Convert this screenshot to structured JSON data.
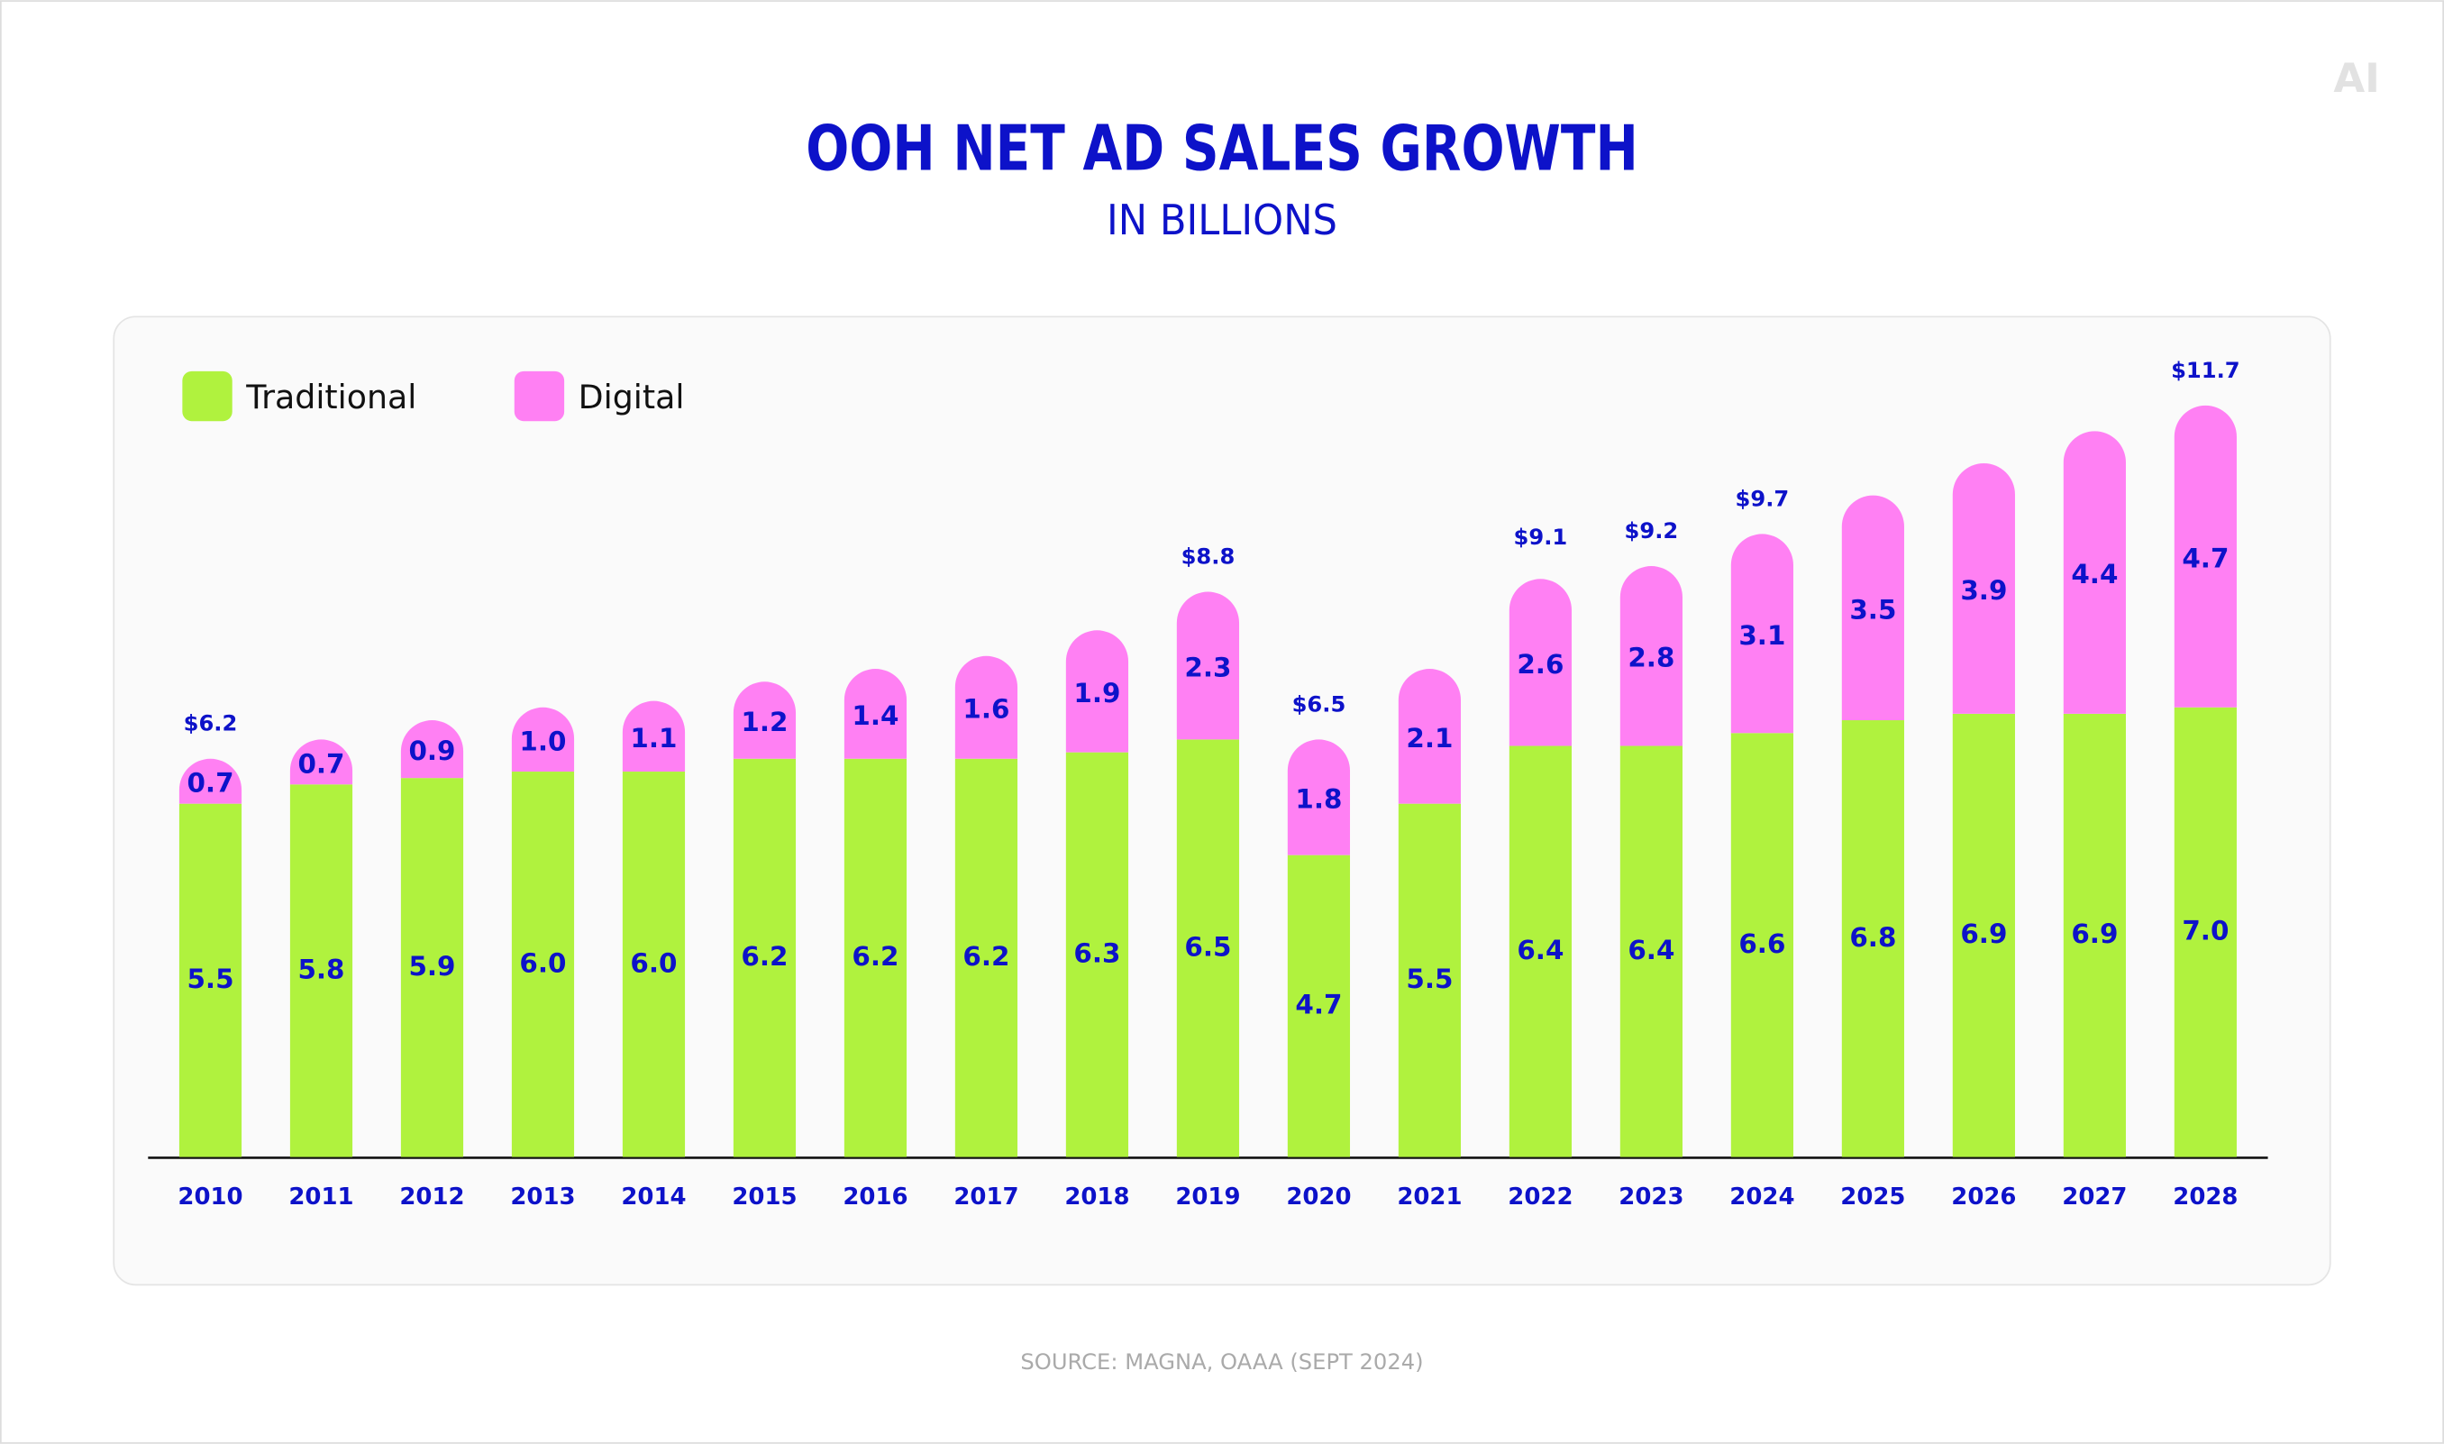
{
  "chart_data": {
    "type": "stacked-bar",
    "title": "OOH NET AD SALES GROWTH",
    "subtitle": "IN BILLIONS",
    "source": "SOURCE: MAGNA, OAAA (SEPT 2024)",
    "logo": "AI",
    "categories": [
      "2010",
      "2011",
      "2012",
      "2013",
      "2014",
      "2015",
      "2016",
      "2017",
      "2018",
      "2019",
      "2020",
      "2021",
      "2022",
      "2023",
      "2024",
      "2025",
      "2026",
      "2027",
      "2028"
    ],
    "series": [
      {
        "name": "Traditional",
        "color": "#b0f23e",
        "values": [
          5.5,
          5.8,
          5.9,
          6.0,
          6.0,
          6.2,
          6.2,
          6.2,
          6.3,
          6.5,
          4.7,
          5.5,
          6.4,
          6.4,
          6.6,
          6.8,
          6.9,
          6.9,
          7.0
        ],
        "value_labels": [
          "5.5",
          "5.8",
          "5.9",
          "6.0",
          "6.0",
          "6.2",
          "6.2",
          "6.2",
          "6.3",
          "6.5",
          "4.7",
          "5.5",
          "6.4",
          "6.4",
          "6.6",
          "6.8",
          "6.9",
          "6.9",
          "7.0"
        ]
      },
      {
        "name": "Digital",
        "color": "#ff80f3",
        "values": [
          0.7,
          0.7,
          0.9,
          1.0,
          1.1,
          1.2,
          1.4,
          1.6,
          1.9,
          2.3,
          1.8,
          2.1,
          2.6,
          2.8,
          3.1,
          3.5,
          3.9,
          4.4,
          4.7
        ],
        "value_labels": [
          "0.7",
          "0.7",
          "0.9",
          "1.0",
          "1.1",
          "1.2",
          "1.4",
          "1.6",
          "1.9",
          "2.3",
          "1.8",
          "2.1",
          "2.6",
          "2.8",
          "3.1",
          "3.5",
          "3.9",
          "4.4",
          "4.7"
        ]
      }
    ],
    "totals": {
      "values": [
        6.2,
        null,
        null,
        null,
        null,
        null,
        null,
        null,
        null,
        8.8,
        6.5,
        null,
        9.1,
        9.2,
        9.7,
        null,
        null,
        null,
        11.7
      ],
      "value_labels": [
        "$6.2",
        null,
        null,
        null,
        null,
        null,
        null,
        null,
        null,
        "$8.8",
        "$6.5",
        null,
        "$9.1",
        "$9.2",
        "$9.7",
        null,
        null,
        null,
        "$11.7"
      ]
    },
    "legend": "top-left"
  }
}
